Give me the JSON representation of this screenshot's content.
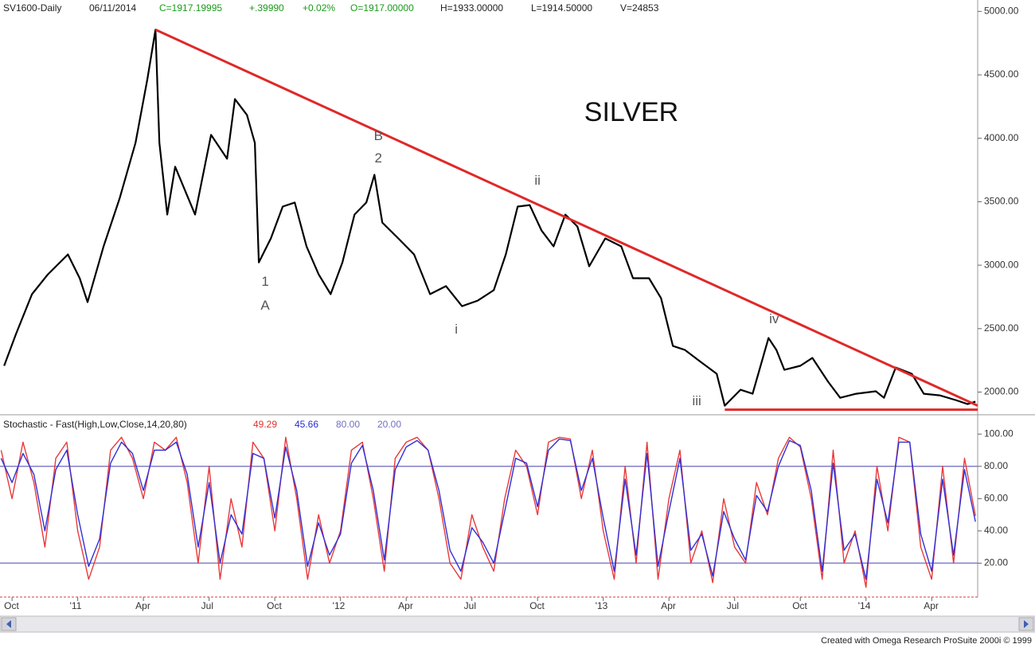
{
  "header": {
    "symbol": "SV1600-Daily",
    "date": "06/11/2014",
    "close": "C=1917.19995",
    "change": "+.39990",
    "pct": "+0.02%",
    "open": "O=1917.00000",
    "high": "H=1933.00000",
    "low": "L=1914.50000",
    "volume": "V=24853"
  },
  "footer": "Created with Omega Research ProSuite 2000i © 1999",
  "chart_data": [
    {
      "type": "line",
      "title": "SILVER",
      "xlim": [
        -0.55,
        44.1
      ],
      "ylim": [
        1840,
        5090
      ],
      "yticks": [
        {
          "value": 2000,
          "label": "2000.00"
        },
        {
          "value": 2500,
          "label": "2500.00"
        },
        {
          "value": 3000,
          "label": "3000.00"
        },
        {
          "value": 3500,
          "label": "3500.00"
        },
        {
          "value": 4000,
          "label": "4000.00"
        },
        {
          "value": 4500,
          "label": "4500.00"
        },
        {
          "value": 5000,
          "label": "5000.00"
        }
      ],
      "series": [
        {
          "color": "#000000",
          "x": [
            -0.36,
            0.18,
            0.91,
            1.64,
            2.55,
            3.09,
            3.45,
            4.18,
            4.91,
            5.64,
            6.18,
            6.55,
            6.73,
            7.09,
            7.45,
            8.36,
            9.09,
            9.82,
            10.18,
            10.73,
            11.09,
            11.27,
            11.82,
            12.36,
            12.91,
            13.45,
            14,
            14.55,
            15.09,
            15.64,
            16.18,
            16.55,
            16.91,
            17.64,
            18.36,
            19.09,
            19.82,
            20.55,
            21.27,
            22,
            22.55,
            23.09,
            23.64,
            24.18,
            24.73,
            25.27,
            25.82,
            26.36,
            27.09,
            27.82,
            28.36,
            29.09,
            29.64,
            30.18,
            30.73,
            31.45,
            32.18,
            32.55,
            33.27,
            33.82,
            34.55,
            34.91,
            35.27,
            36,
            36.55,
            37.27,
            37.82,
            38.55,
            39.45,
            39.82,
            40.36,
            41.09,
            41.64,
            42.36,
            43.09,
            43.64,
            44
          ],
          "values": [
            2207,
            2458,
            2772,
            2928,
            3085,
            2897,
            2709,
            3148,
            3525,
            3964,
            4466,
            4856,
            3964,
            3399,
            3776,
            3399,
            4027,
            3839,
            4309,
            4184,
            3964,
            3022,
            3211,
            3462,
            3494,
            3148,
            2928,
            2772,
            3022,
            3399,
            3494,
            3713,
            3336,
            3211,
            3085,
            2772,
            2835,
            2677,
            2721,
            2803,
            3085,
            3462,
            3474,
            3274,
            3148,
            3399,
            3305,
            2991,
            3211,
            3148,
            2897,
            2897,
            2740,
            2363,
            2332,
            2238,
            2144,
            1893,
            2018,
            1987,
            2426,
            2332,
            2175,
            2207,
            2269,
            2081,
            1955,
            1987,
            2006,
            1955,
            2194,
            2144,
            1987,
            1974,
            1937,
            1905,
            1924
          ]
        }
      ],
      "trendlines": [
        {
          "color": "#e02828",
          "x": [
            6.55,
            44.1
          ],
          "y": [
            4856,
            1893
          ]
        },
        {
          "color": "#e02828",
          "x": [
            32.55,
            44.1
          ],
          "y": [
            1861,
            1861
          ]
        }
      ],
      "annotations": [
        {
          "text": "1",
          "x": 11.56,
          "y": 2866
        },
        {
          "text": "A",
          "x": 11.56,
          "y": 2677
        },
        {
          "text": "B",
          "x": 16.73,
          "y": 4014
        },
        {
          "text": "2",
          "x": 16.73,
          "y": 3839
        },
        {
          "text": "i",
          "x": 20.29,
          "y": 2489
        },
        {
          "text": "ii",
          "x": 24,
          "y": 3663
        },
        {
          "text": "iii",
          "x": 31.27,
          "y": 1924
        },
        {
          "text": "iv",
          "x": 34.8,
          "y": 2571
        }
      ]
    },
    {
      "type": "line",
      "title": "Stochastic - Fast(High,Low,Close,14,20,80)",
      "readouts": [
        {
          "text": "49.29",
          "color": "#e03030"
        },
        {
          "text": "45.66",
          "color": "#2b2bd0"
        },
        {
          "text": "80.00",
          "color": "#7070c0"
        },
        {
          "text": "20.00",
          "color": "#7070c0"
        }
      ],
      "xlim": [
        -0.55,
        44.1
      ],
      "ylim": [
        -1,
        110
      ],
      "yticks": [
        {
          "value": 20,
          "label": "20.00"
        },
        {
          "value": 40,
          "label": "40.00"
        },
        {
          "value": 60,
          "label": "60.00"
        },
        {
          "value": 80,
          "label": "80.00"
        },
        {
          "value": 100,
          "label": "100.00"
        }
      ],
      "levels": [
        80,
        20
      ],
      "level_color": "#8080c8",
      "xticks": [
        {
          "value": 0,
          "label": "Oct"
        },
        {
          "value": 3,
          "label": "'11"
        },
        {
          "value": 6,
          "label": "Apr"
        },
        {
          "value": 9,
          "label": "Jul"
        },
        {
          "value": 12,
          "label": "Oct"
        },
        {
          "value": 15,
          "label": "'12"
        },
        {
          "value": 18,
          "label": "Apr"
        },
        {
          "value": 21,
          "label": "Jul"
        },
        {
          "value": 24,
          "label": "Oct"
        },
        {
          "value": 27,
          "label": "'13"
        },
        {
          "value": 30,
          "label": "Apr"
        },
        {
          "value": 33,
          "label": "Jul"
        },
        {
          "value": 36,
          "label": "Oct"
        },
        {
          "value": 39,
          "label": "'14"
        },
        {
          "value": 42,
          "label": "Apr"
        }
      ],
      "x": [
        -0.5,
        0,
        0.5,
        1,
        1.5,
        2,
        2.5,
        3,
        3.5,
        4,
        4.5,
        5,
        5.5,
        6,
        6.5,
        7,
        7.5,
        8,
        8.5,
        9,
        9.5,
        10,
        10.5,
        11,
        11.5,
        12,
        12.5,
        13,
        13.5,
        14,
        14.5,
        15,
        15.5,
        16,
        16.5,
        17,
        17.5,
        18,
        18.5,
        19,
        19.5,
        20,
        20.5,
        21,
        21.5,
        22,
        22.5,
        23,
        23.5,
        24,
        24.5,
        25,
        25.5,
        26,
        26.5,
        27,
        27.5,
        28,
        28.5,
        29,
        29.5,
        30,
        30.5,
        31,
        31.5,
        32,
        32.5,
        33,
        33.5,
        34,
        34.5,
        35,
        35.5,
        36,
        36.5,
        37,
        37.5,
        38,
        38.5,
        39,
        39.5,
        40,
        40.5,
        41,
        41.5,
        42,
        42.5,
        43,
        43.5,
        44
      ],
      "series": [
        {
          "color": "#e83a3a",
          "values": [
            90,
            60,
            95,
            70,
            30,
            85,
            95,
            40,
            10,
            30,
            90,
            98,
            85,
            60,
            95,
            90,
            98,
            70,
            20,
            80,
            10,
            60,
            30,
            95,
            85,
            40,
            98,
            60,
            10,
            50,
            20,
            40,
            90,
            95,
            60,
            15,
            85,
            95,
            98,
            90,
            60,
            20,
            10,
            50,
            30,
            15,
            60,
            90,
            80,
            50,
            95,
            98,
            97,
            60,
            90,
            40,
            10,
            80,
            20,
            95,
            10,
            60,
            90,
            20,
            40,
            8,
            60,
            30,
            20,
            70,
            50,
            85,
            98,
            92,
            60,
            10,
            90,
            20,
            40,
            5,
            80,
            40,
            98,
            95,
            30,
            10,
            80,
            20,
            85,
            49.29
          ]
        },
        {
          "color": "#3030d8",
          "values": [
            85,
            70,
            88,
            75,
            40,
            78,
            90,
            50,
            18,
            35,
            82,
            95,
            88,
            65,
            90,
            90,
            95,
            75,
            30,
            70,
            20,
            50,
            38,
            88,
            85,
            48,
            92,
            65,
            18,
            45,
            25,
            38,
            82,
            93,
            65,
            22,
            78,
            92,
            96,
            90,
            65,
            28,
            15,
            42,
            33,
            20,
            52,
            85,
            82,
            55,
            90,
            97,
            96,
            65,
            85,
            48,
            15,
            72,
            25,
            88,
            18,
            52,
            85,
            28,
            38,
            12,
            52,
            35,
            22,
            62,
            52,
            80,
            96,
            93,
            65,
            15,
            82,
            28,
            38,
            10,
            72,
            45,
            95,
            95,
            38,
            15,
            72,
            25,
            78,
            45.66
          ]
        }
      ]
    }
  ]
}
